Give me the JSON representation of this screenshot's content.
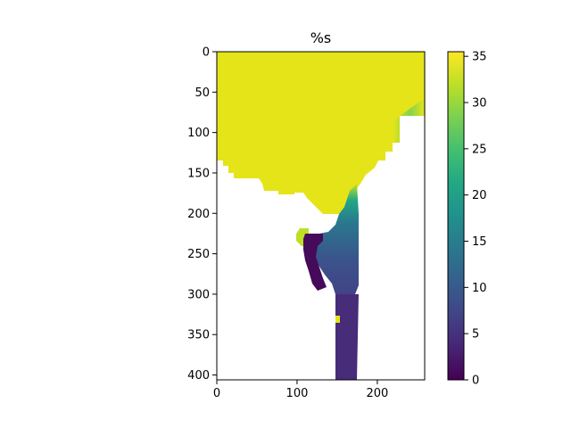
{
  "chart_data": {
    "type": "heatmap",
    "title": "%s",
    "colormap": "viridis",
    "xlim": [
      0,
      259
    ],
    "ylim": [
      406,
      0
    ],
    "x_ticks": [
      0,
      100,
      200
    ],
    "y_ticks": [
      0,
      50,
      100,
      150,
      200,
      250,
      300,
      350,
      400
    ],
    "colorbar": {
      "range": [
        0,
        35.5
      ],
      "ticks": [
        0,
        5,
        10,
        15,
        20,
        25,
        30,
        35
      ]
    },
    "regions": {
      "open_ocean_value": 34.8,
      "plume_near_mouth_value": 9,
      "inner_bay_value": 1.5,
      "channel_value": 4
    }
  }
}
